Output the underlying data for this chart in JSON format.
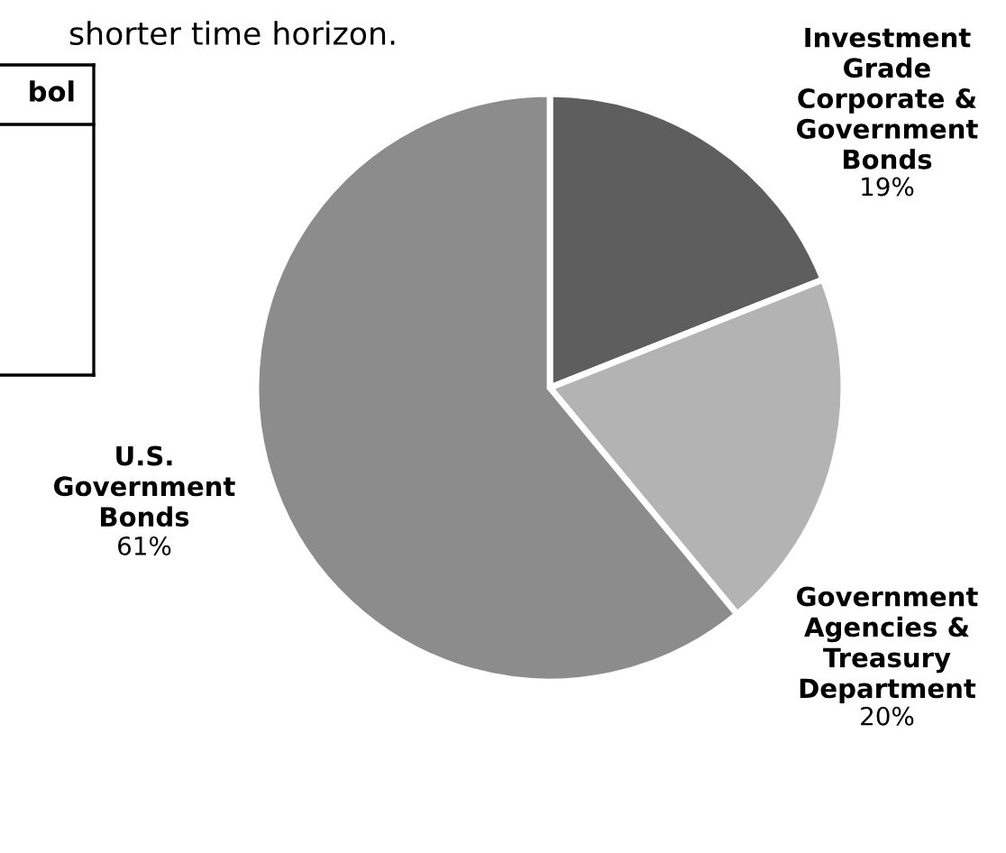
{
  "chart_data": {
    "type": "pie",
    "categories": [
      "Investment Grade Corporate & Government Bonds",
      "Government Agencies & Treasury Department",
      "U.S. Government Bonds"
    ],
    "values": [
      19,
      20,
      61
    ],
    "colors": [
      "#5e5e5e",
      "#b3b3b3",
      "#8c8c8c"
    ],
    "value_labels": [
      "19%",
      "20%",
      "61%"
    ],
    "annotations": [
      "shorter time horizon.",
      "bol"
    ]
  }
}
